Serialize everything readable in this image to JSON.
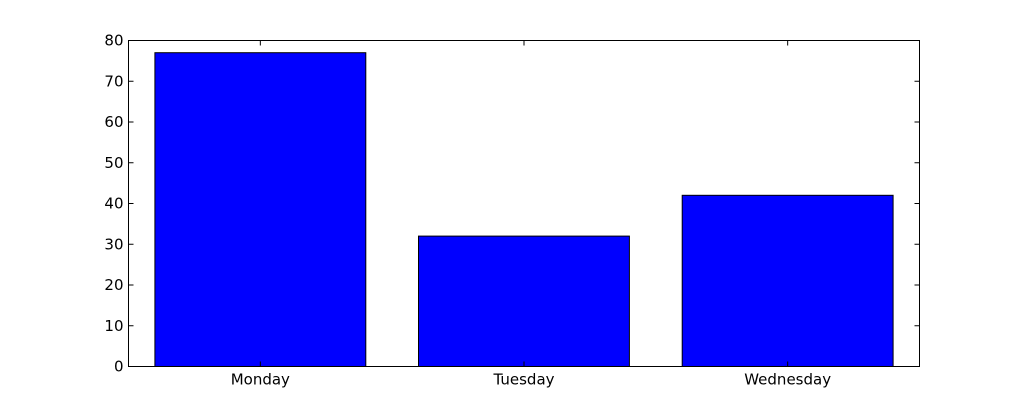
{
  "chart_data": {
    "type": "bar",
    "categories": [
      "Monday",
      "Tuesday",
      "Wednesday"
    ],
    "values": [
      77,
      32,
      42
    ],
    "title": "",
    "xlabel": "",
    "ylabel": "",
    "ylim": [
      0,
      80
    ],
    "yticks": [
      0,
      10,
      20,
      30,
      40,
      50,
      60,
      70,
      80
    ],
    "grid": false,
    "legend": "none",
    "bar_color": "#0000ff",
    "edge_color": "#000000"
  }
}
